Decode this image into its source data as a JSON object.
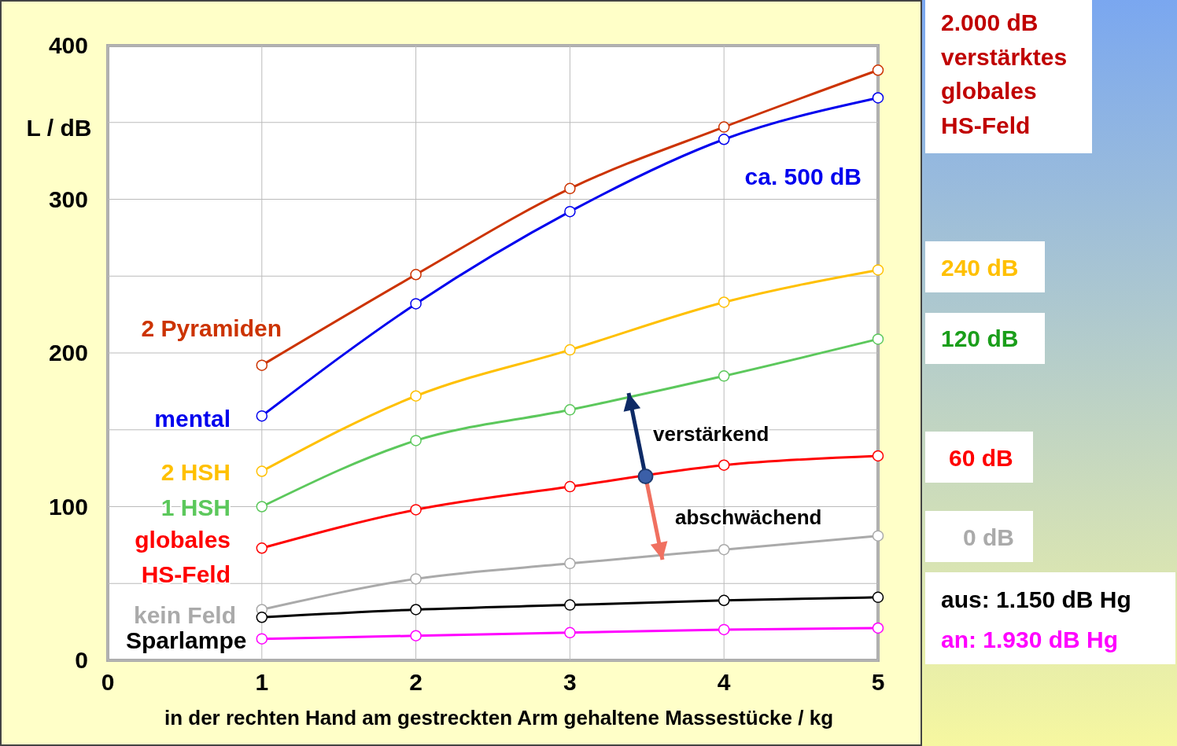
{
  "chart_data": {
    "type": "line",
    "xlabel": "in der rechten Hand am gestreckten Arm gehaltene Massestücke / kg",
    "ylabel": "L / dB",
    "x": [
      1,
      2,
      3,
      4,
      5
    ],
    "xlim": [
      0,
      5
    ],
    "xticks": [
      0,
      1,
      2,
      3,
      4,
      5
    ],
    "ylim": [
      0,
      400
    ],
    "yticks": [
      0,
      {
        "value": 50,
        "label": null
      },
      100,
      {
        "value": 150,
        "label": null
      },
      200,
      {
        "value": 250,
        "label": null
      },
      300,
      {
        "value": 350,
        "label": null
      },
      400
    ],
    "grid": true,
    "marker": "circle",
    "line_style": "solid",
    "series": [
      {
        "name": "2 Pyramiden",
        "color": "#cc3300",
        "values": [
          192,
          251,
          307,
          347,
          384
        ]
      },
      {
        "name": "mental",
        "color": "#0000ee",
        "values": [
          159,
          232,
          292,
          339,
          366
        ]
      },
      {
        "name": "2 HSH",
        "color": "#ffc000",
        "values": [
          123,
          172,
          202,
          233,
          254
        ]
      },
      {
        "name": "1 HSH",
        "color": "#5cc85c",
        "values": [
          100,
          143,
          163,
          185,
          209
        ]
      },
      {
        "name": "globales HS-Feld",
        "color": "#ff0000",
        "values": [
          73,
          98,
          113,
          127,
          133
        ]
      },
      {
        "name": "kein Feld",
        "color": "#aaaaaa",
        "values": [
          33,
          53,
          63,
          72,
          81
        ]
      },
      {
        "name": "aus: 1.150 dB Hg",
        "color": "#000000",
        "values": [
          28,
          33,
          36,
          39,
          41
        ]
      },
      {
        "name": "an: 1.930 dB Hg",
        "color": "#ff00ff",
        "values": [
          14,
          16,
          18,
          20,
          21
        ]
      }
    ],
    "annotations": [
      "2.000 dB verstärktes globales HS-Feld",
      "ca. 500 dB",
      "240 dB",
      "120 dB",
      "60 dB",
      "0 dB",
      "Sparlampe",
      "verstärkend",
      "abschwächend"
    ]
  }
}
